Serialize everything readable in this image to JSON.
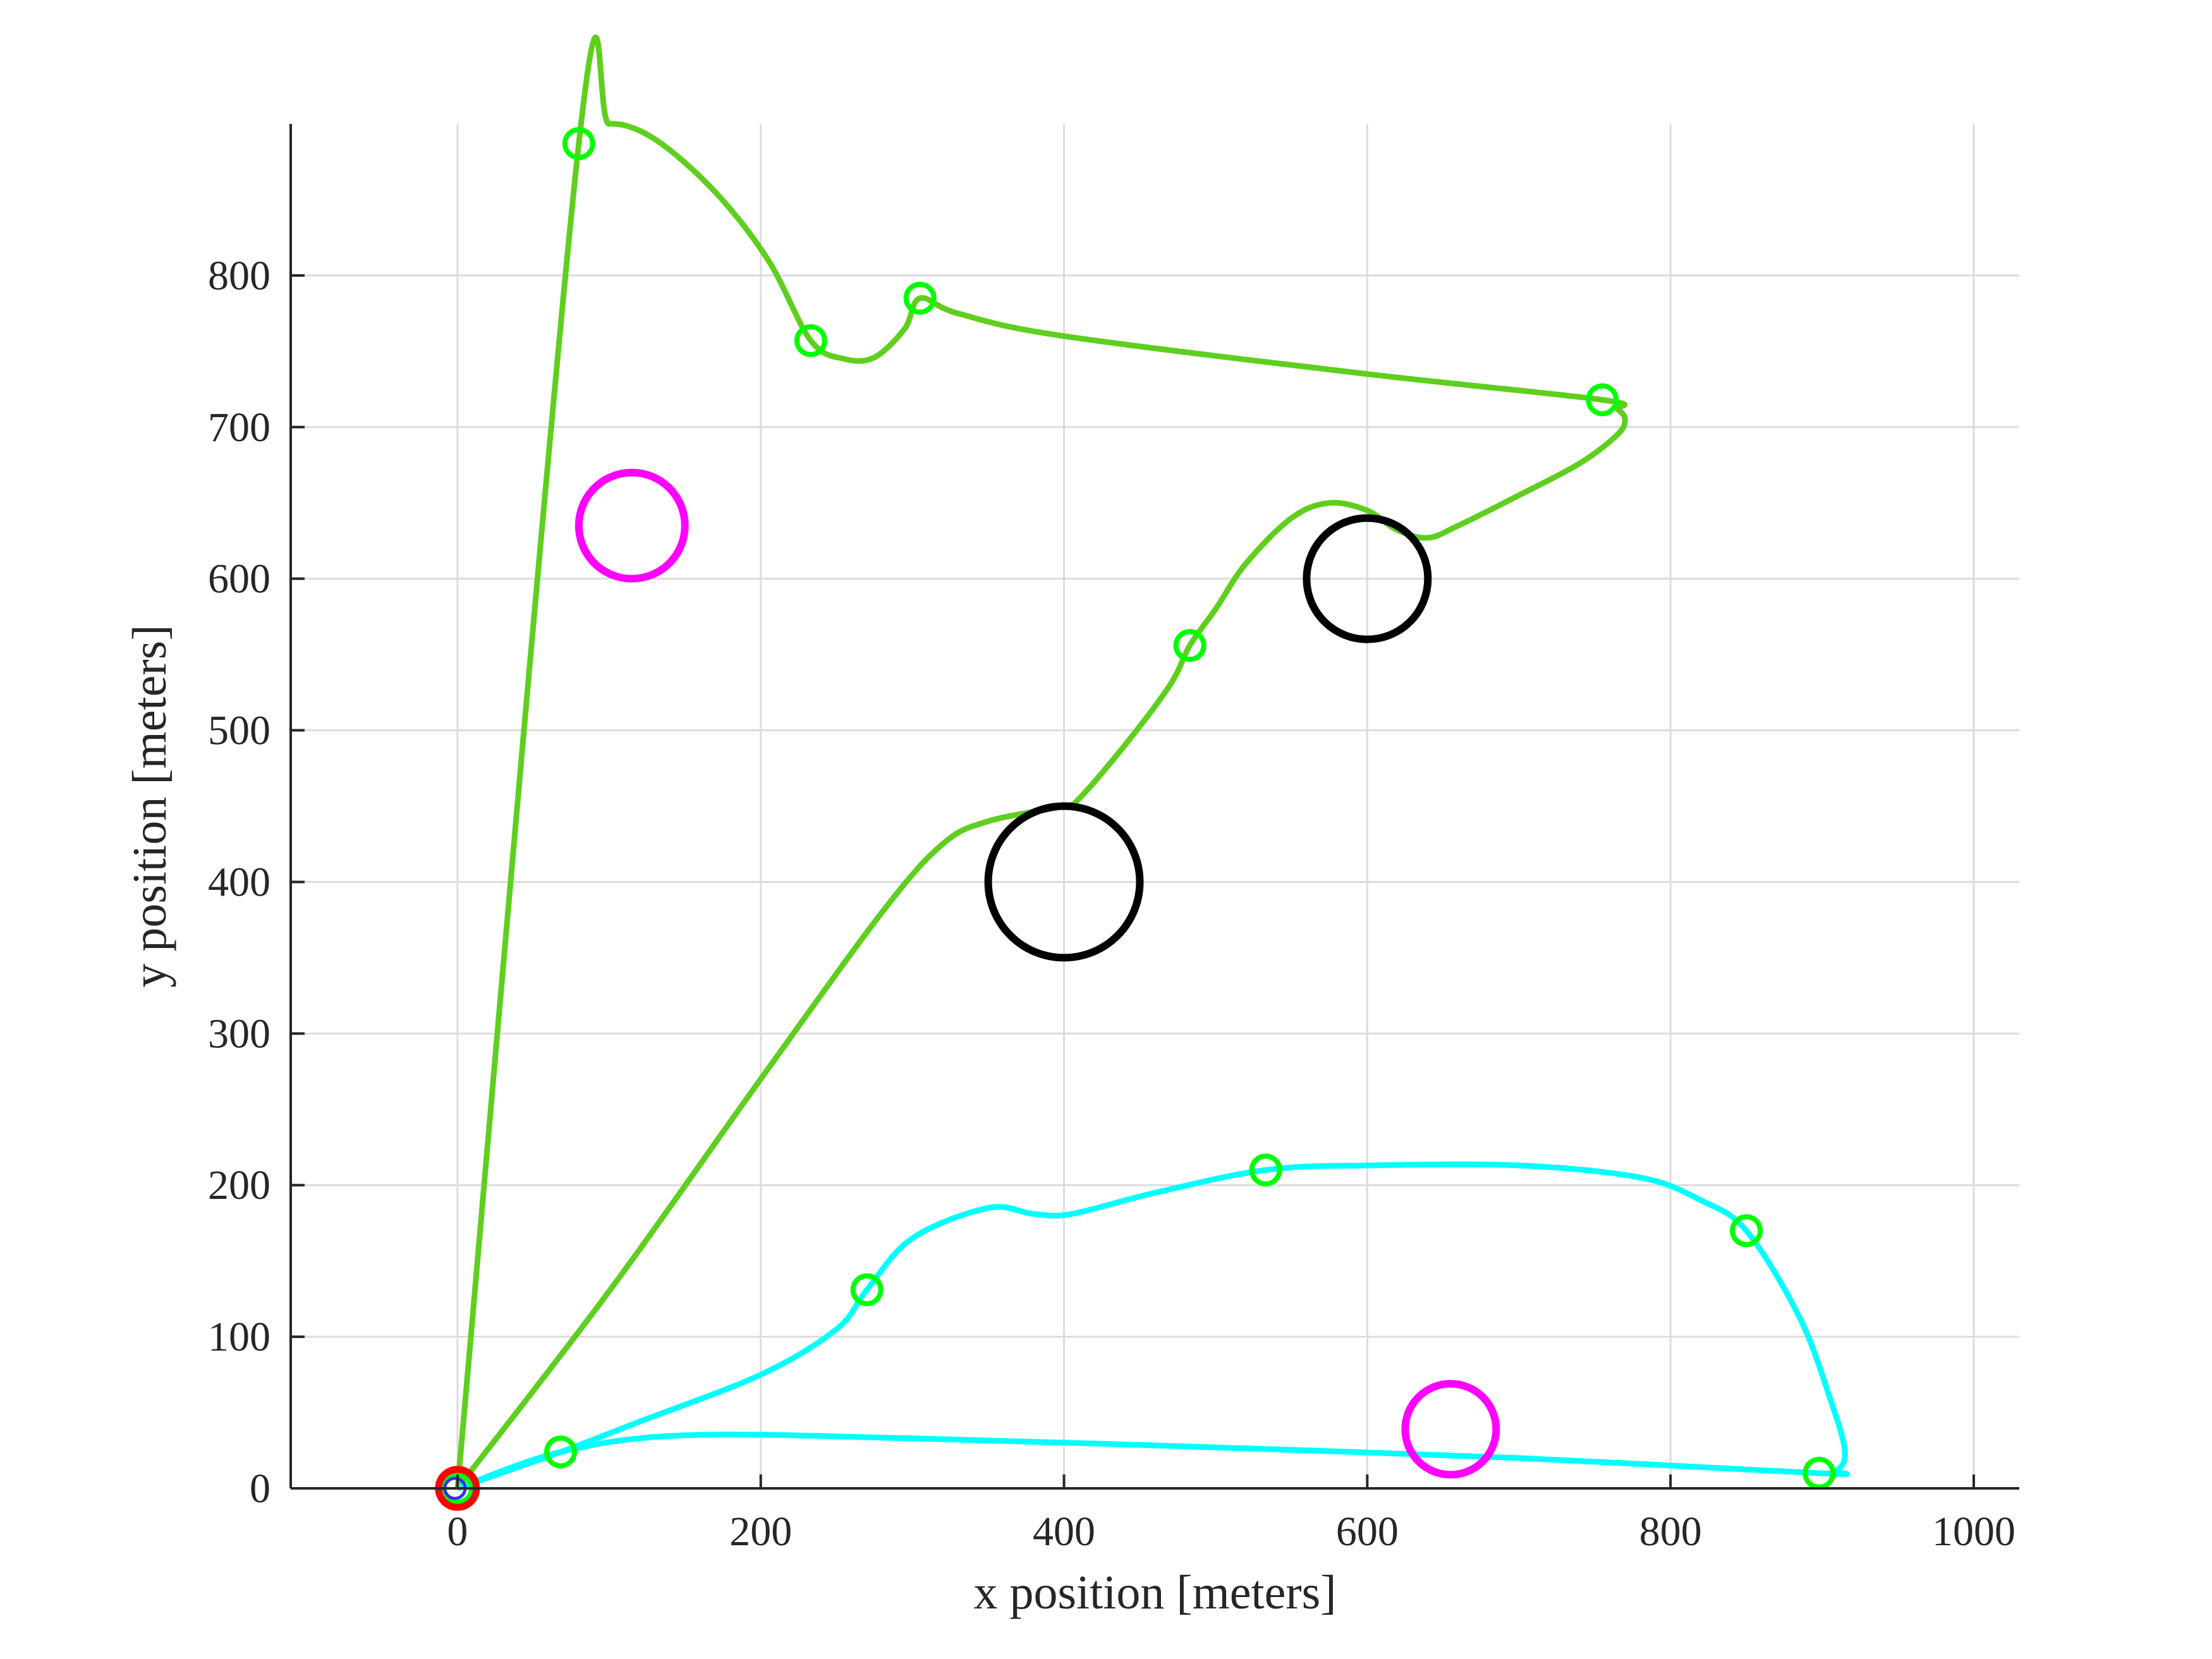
{
  "chart_data": {
    "type": "scatter",
    "xlabel": "x position [meters]",
    "ylabel": "y position [meters]",
    "xlim": [
      -110,
      1030
    ],
    "ylim": [
      0,
      900
    ],
    "xticks": [
      "0",
      "200",
      "400",
      "600",
      "800",
      "1000"
    ],
    "yticks": [
      "0",
      "100",
      "200",
      "300",
      "400",
      "500",
      "600",
      "700",
      "800"
    ],
    "grid": true,
    "colors": {
      "path_green": "#5fcf1f",
      "path_cyan": "#00ffff",
      "waypoint": "#00ff00",
      "obstacle": "#000000",
      "target": "#ff00ff",
      "start": "#ff0000"
    },
    "paths": [
      {
        "color": "path_green",
        "points": [
          [
            0,
            0
          ],
          [
            80,
            887
          ],
          [
            100,
            900
          ],
          [
            130,
            890
          ],
          [
            170,
            855
          ],
          [
            205,
            810
          ],
          [
            233,
            757
          ],
          [
            255,
            745
          ],
          [
            275,
            746
          ],
          [
            295,
            765
          ],
          [
            305,
            785
          ],
          [
            330,
            775
          ],
          [
            400,
            760
          ],
          [
            600,
            735
          ],
          [
            755,
            718
          ],
          [
            765,
            712
          ],
          [
            770,
            705
          ],
          [
            765,
            695
          ],
          [
            740,
            676
          ],
          [
            700,
            655
          ],
          [
            660,
            635
          ],
          [
            640,
            627
          ],
          [
            620,
            632
          ],
          [
            600,
            645
          ],
          [
            575,
            650
          ],
          [
            550,
            640
          ],
          [
            520,
            610
          ],
          [
            500,
            580
          ],
          [
            483,
            556
          ],
          [
            470,
            530
          ],
          [
            440,
            490
          ],
          [
            410,
            455
          ],
          [
            400,
            450
          ],
          [
            350,
            440
          ],
          [
            320,
            425
          ],
          [
            280,
            380
          ],
          [
            200,
            270
          ],
          [
            100,
            130
          ],
          [
            0,
            0
          ]
        ]
      },
      {
        "color": "path_cyan",
        "points": [
          [
            0,
            0
          ],
          [
            68,
            24
          ],
          [
            120,
            44
          ],
          [
            200,
            75
          ],
          [
            250,
            105
          ],
          [
            270,
            131
          ],
          [
            300,
            165
          ],
          [
            350,
            185
          ],
          [
            380,
            181
          ],
          [
            405,
            181
          ],
          [
            460,
            195
          ],
          [
            533,
            210
          ],
          [
            600,
            213
          ],
          [
            700,
            213
          ],
          [
            780,
            205
          ],
          [
            820,
            190
          ],
          [
            850,
            170
          ],
          [
            885,
            113
          ],
          [
            905,
            60
          ],
          [
            915,
            25
          ],
          [
            910,
            12
          ],
          [
            898,
            10
          ],
          [
            700,
            20
          ],
          [
            500,
            27
          ],
          [
            300,
            33
          ],
          [
            150,
            35
          ],
          [
            68,
            24
          ],
          [
            0,
            0
          ]
        ]
      }
    ],
    "waypoints": [
      [
        80,
        887
      ],
      [
        233,
        757
      ],
      [
        305,
        785
      ],
      [
        755,
        718
      ],
      [
        483,
        556
      ],
      [
        533,
        210
      ],
      [
        270,
        131
      ],
      [
        850,
        170
      ],
      [
        898,
        10
      ],
      [
        68,
        24
      ],
      [
        0,
        0
      ]
    ],
    "obstacles": [
      {
        "x": 400,
        "y": 400,
        "r": 50
      },
      {
        "x": 600,
        "y": 600,
        "r": 40
      }
    ],
    "targets": [
      {
        "x": 115,
        "y": 635,
        "r": 35
      },
      {
        "x": 655,
        "y": 39,
        "r": 30
      }
    ],
    "start": {
      "x": 0,
      "y": 0
    }
  }
}
